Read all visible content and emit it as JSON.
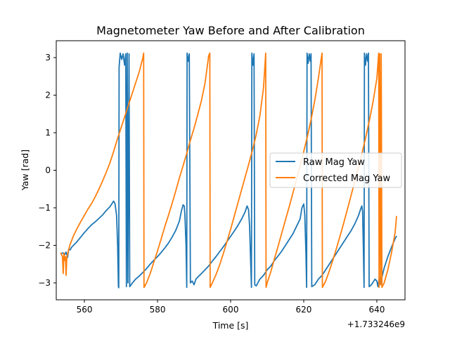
{
  "chart_data": {
    "type": "line",
    "title": "Magnetometer Yaw Before and After Calibration",
    "xlabel": "Time [s]",
    "ylabel": "Yaw [rad]",
    "x_offset_label": "+1.733246e9",
    "xlim": [
      552.3,
      647.7
    ],
    "ylim": [
      -3.45,
      3.45
    ],
    "x_ticks": [
      {
        "value": 560,
        "label": "560"
      },
      {
        "value": 580,
        "label": "580"
      },
      {
        "value": 600,
        "label": "600"
      },
      {
        "value": 620,
        "label": "620"
      },
      {
        "value": 640,
        "label": "640"
      }
    ],
    "y_ticks": [
      {
        "value": -3,
        "label": "−3"
      },
      {
        "value": -2,
        "label": "−2"
      },
      {
        "value": -1,
        "label": "−1"
      },
      {
        "value": 0,
        "label": "0"
      },
      {
        "value": 1,
        "label": "1"
      },
      {
        "value": 2,
        "label": "2"
      },
      {
        "value": 3,
        "label": "3"
      }
    ],
    "grid": false,
    "legend": {
      "placement": "center-right"
    },
    "series": [
      {
        "name": "Raw Mag Yaw",
        "color": "#1f77b4",
        "points": [
          [
            553.5,
            -2.22
          ],
          [
            554.2,
            -2.2
          ],
          [
            554.6,
            -2.25
          ],
          [
            555.0,
            -2.18
          ],
          [
            555.4,
            -2.32
          ],
          [
            555.7,
            -2.1
          ],
          [
            556.1,
            -2.12
          ],
          [
            556.5,
            -2.05
          ],
          [
            557.0,
            -2.0
          ],
          [
            558.0,
            -1.9
          ],
          [
            559.0,
            -1.78
          ],
          [
            560.0,
            -1.66
          ],
          [
            561.0,
            -1.55
          ],
          [
            562.0,
            -1.45
          ],
          [
            563.0,
            -1.37
          ],
          [
            564.0,
            -1.28
          ],
          [
            565.0,
            -1.19
          ],
          [
            566.0,
            -1.07
          ],
          [
            567.0,
            -0.97
          ],
          [
            567.6,
            -0.88
          ],
          [
            568.0,
            -0.82
          ],
          [
            568.4,
            -0.9
          ],
          [
            568.8,
            -1.2
          ],
          [
            569.1,
            -2.0
          ],
          [
            569.3,
            -3.1
          ],
          [
            569.4,
            -3.13
          ],
          [
            569.5,
            2.75
          ],
          [
            569.8,
            3.12
          ],
          [
            570.2,
            2.95
          ],
          [
            570.6,
            3.1
          ],
          [
            571.0,
            2.8
          ],
          [
            571.3,
            3.1
          ],
          [
            571.5,
            -3.1
          ],
          [
            571.7,
            3.12
          ],
          [
            571.9,
            -3.0
          ],
          [
            572.2,
            3.1
          ],
          [
            572.4,
            -3.1
          ],
          [
            573.0,
            -3.02
          ],
          [
            574.0,
            -2.9
          ],
          [
            575.0,
            -2.82
          ],
          [
            576.0,
            -2.72
          ],
          [
            577.0,
            -2.62
          ],
          [
            578.0,
            -2.5
          ],
          [
            579.0,
            -2.4
          ],
          [
            580.0,
            -2.3
          ],
          [
            581.0,
            -2.19
          ],
          [
            582.0,
            -2.07
          ],
          [
            583.0,
            -1.94
          ],
          [
            584.0,
            -1.78
          ],
          [
            585.0,
            -1.6
          ],
          [
            586.0,
            -1.35
          ],
          [
            586.5,
            -1.1
          ],
          [
            587.0,
            -0.92
          ],
          [
            587.3,
            -0.95
          ],
          [
            587.5,
            -1.2
          ],
          [
            587.8,
            -2.0
          ],
          [
            588.0,
            -3.12
          ],
          [
            588.1,
            3.12
          ],
          [
            588.4,
            2.9
          ],
          [
            588.7,
            3.1
          ],
          [
            589.0,
            -3.0
          ],
          [
            589.5,
            -2.95
          ],
          [
            590.0,
            -3.05
          ],
          [
            590.5,
            -2.9
          ],
          [
            591.0,
            -2.85
          ],
          [
            592.0,
            -2.75
          ],
          [
            593.0,
            -2.65
          ],
          [
            594.0,
            -2.55
          ],
          [
            595.0,
            -2.42
          ],
          [
            596.0,
            -2.3
          ],
          [
            597.0,
            -2.17
          ],
          [
            598.0,
            -2.04
          ],
          [
            599.0,
            -1.9
          ],
          [
            600.0,
            -1.76
          ],
          [
            601.0,
            -1.62
          ],
          [
            602.0,
            -1.47
          ],
          [
            603.0,
            -1.3
          ],
          [
            604.0,
            -1.1
          ],
          [
            604.5,
            -0.95
          ],
          [
            604.9,
            -1.05
          ],
          [
            605.2,
            -1.5
          ],
          [
            605.5,
            -2.5
          ],
          [
            605.7,
            -3.12
          ],
          [
            605.8,
            3.12
          ],
          [
            606.1,
            2.8
          ],
          [
            606.4,
            3.1
          ],
          [
            606.6,
            -3.05
          ],
          [
            607.0,
            -3.08
          ],
          [
            608.0,
            -2.9
          ],
          [
            609.0,
            -2.8
          ],
          [
            610.0,
            -2.65
          ],
          [
            611.0,
            -2.55
          ],
          [
            612.0,
            -2.4
          ],
          [
            613.0,
            -2.28
          ],
          [
            614.0,
            -2.15
          ],
          [
            615.0,
            -2.0
          ],
          [
            616.0,
            -1.85
          ],
          [
            617.0,
            -1.7
          ],
          [
            618.0,
            -1.5
          ],
          [
            619.0,
            -1.3
          ],
          [
            619.5,
            -1.0
          ],
          [
            620.0,
            -0.9
          ],
          [
            620.3,
            -1.2
          ],
          [
            620.6,
            -2.2
          ],
          [
            620.8,
            -3.12
          ],
          [
            620.9,
            3.12
          ],
          [
            621.2,
            2.85
          ],
          [
            621.5,
            3.1
          ],
          [
            621.8,
            2.9
          ],
          [
            622.0,
            3.1
          ],
          [
            622.2,
            -3.1
          ],
          [
            623.0,
            -3.05
          ],
          [
            624.0,
            -2.9
          ],
          [
            625.0,
            -2.8
          ],
          [
            626.0,
            -2.65
          ],
          [
            627.0,
            -2.5
          ],
          [
            628.0,
            -2.35
          ],
          [
            629.0,
            -2.2
          ],
          [
            630.0,
            -2.05
          ],
          [
            631.0,
            -1.9
          ],
          [
            632.0,
            -1.75
          ],
          [
            633.0,
            -1.6
          ],
          [
            634.0,
            -1.42
          ],
          [
            635.0,
            -1.2
          ],
          [
            635.5,
            -1.05
          ],
          [
            635.9,
            -0.95
          ],
          [
            636.1,
            -1.1
          ],
          [
            636.3,
            -2.0
          ],
          [
            636.5,
            -3.12
          ],
          [
            636.6,
            3.12
          ],
          [
            636.9,
            2.8
          ],
          [
            637.2,
            3.1
          ],
          [
            637.5,
            2.9
          ],
          [
            637.7,
            3.12
          ],
          [
            637.9,
            -3.1
          ],
          [
            638.5,
            -3.05
          ],
          [
            639.5,
            -2.9
          ],
          [
            640.0,
            -2.95
          ],
          [
            640.3,
            -3.1
          ],
          [
            640.7,
            -2.85
          ],
          [
            641.0,
            -3.05
          ],
          [
            641.5,
            -2.8
          ],
          [
            642.0,
            -2.6
          ],
          [
            643.0,
            -2.3
          ],
          [
            644.0,
            -2.05
          ],
          [
            645.0,
            -1.82
          ],
          [
            645.4,
            -1.75
          ]
        ]
      },
      {
        "name": "Corrected Mag Yaw",
        "color": "#ff7f0e",
        "points": [
          [
            553.5,
            -2.2
          ],
          [
            554.0,
            -2.3
          ],
          [
            554.2,
            -2.75
          ],
          [
            554.4,
            -2.2
          ],
          [
            554.6,
            -2.4
          ],
          [
            554.8,
            -2.3
          ],
          [
            555.0,
            -2.8
          ],
          [
            555.2,
            -2.3
          ],
          [
            555.5,
            -2.2
          ],
          [
            556.0,
            -2.0
          ],
          [
            557.0,
            -1.75
          ],
          [
            558.0,
            -1.55
          ],
          [
            559.0,
            -1.37
          ],
          [
            560.0,
            -1.2
          ],
          [
            561.0,
            -1.03
          ],
          [
            562.0,
            -0.88
          ],
          [
            563.0,
            -0.7
          ],
          [
            564.0,
            -0.5
          ],
          [
            565.0,
            -0.28
          ],
          [
            566.0,
            -0.05
          ],
          [
            567.0,
            0.2
          ],
          [
            568.0,
            0.5
          ],
          [
            569.0,
            0.82
          ],
          [
            570.0,
            1.12
          ],
          [
            571.0,
            1.42
          ],
          [
            572.0,
            1.72
          ],
          [
            573.0,
            2.02
          ],
          [
            574.0,
            2.32
          ],
          [
            575.0,
            2.62
          ],
          [
            576.0,
            3.0
          ],
          [
            576.2,
            3.12
          ],
          [
            576.3,
            -3.12
          ],
          [
            577.0,
            -3.0
          ],
          [
            578.0,
            -2.75
          ],
          [
            579.0,
            -2.45
          ],
          [
            580.0,
            -2.15
          ],
          [
            581.0,
            -1.83
          ],
          [
            582.0,
            -1.5
          ],
          [
            583.0,
            -1.2
          ],
          [
            584.0,
            -0.88
          ],
          [
            585.0,
            -0.55
          ],
          [
            586.0,
            -0.2
          ],
          [
            587.0,
            0.12
          ],
          [
            588.0,
            0.45
          ],
          [
            589.0,
            0.8
          ],
          [
            590.0,
            1.12
          ],
          [
            591.0,
            1.48
          ],
          [
            592.0,
            1.85
          ],
          [
            593.0,
            2.32
          ],
          [
            594.0,
            3.05
          ],
          [
            594.3,
            3.12
          ],
          [
            594.4,
            -3.12
          ],
          [
            595.0,
            -3.0
          ],
          [
            596.0,
            -2.78
          ],
          [
            597.0,
            -2.52
          ],
          [
            598.0,
            -2.22
          ],
          [
            599.0,
            -1.9
          ],
          [
            600.0,
            -1.57
          ],
          [
            601.0,
            -1.22
          ],
          [
            602.0,
            -0.87
          ],
          [
            603.0,
            -0.52
          ],
          [
            604.0,
            -0.17
          ],
          [
            605.0,
            0.18
          ],
          [
            606.0,
            0.55
          ],
          [
            607.0,
            0.95
          ],
          [
            608.0,
            1.45
          ],
          [
            609.0,
            2.2
          ],
          [
            609.6,
            3.12
          ],
          [
            609.7,
            -3.12
          ],
          [
            610.0,
            -3.0
          ],
          [
            611.0,
            -2.7
          ],
          [
            612.0,
            -2.35
          ],
          [
            613.0,
            -2.02
          ],
          [
            614.0,
            -1.67
          ],
          [
            615.0,
            -1.32
          ],
          [
            616.0,
            -0.98
          ],
          [
            617.0,
            -0.62
          ],
          [
            618.0,
            -0.25
          ],
          [
            619.0,
            0.12
          ],
          [
            620.0,
            0.5
          ],
          [
            621.0,
            0.9
          ],
          [
            622.0,
            1.35
          ],
          [
            623.0,
            1.85
          ],
          [
            624.0,
            2.45
          ],
          [
            625.0,
            3.12
          ],
          [
            625.1,
            -3.12
          ],
          [
            626.0,
            -2.95
          ],
          [
            627.0,
            -2.68
          ],
          [
            628.0,
            -2.38
          ],
          [
            629.0,
            -2.06
          ],
          [
            630.0,
            -1.73
          ],
          [
            631.0,
            -1.38
          ],
          [
            632.0,
            -1.02
          ],
          [
            633.0,
            -0.65
          ],
          [
            634.0,
            -0.28
          ],
          [
            635.0,
            0.1
          ],
          [
            636.0,
            0.48
          ],
          [
            637.0,
            0.9
          ],
          [
            638.0,
            1.35
          ],
          [
            639.0,
            1.85
          ],
          [
            640.0,
            2.45
          ],
          [
            640.5,
            3.12
          ],
          [
            640.6,
            -3.12
          ],
          [
            640.8,
            3.1
          ],
          [
            641.0,
            -3.05
          ],
          [
            641.2,
            3.1
          ],
          [
            641.4,
            -3.12
          ],
          [
            642.0,
            -3.0
          ],
          [
            643.0,
            -2.65
          ],
          [
            644.0,
            -2.2
          ],
          [
            645.0,
            -1.65
          ],
          [
            645.4,
            -1.22
          ]
        ]
      }
    ]
  }
}
